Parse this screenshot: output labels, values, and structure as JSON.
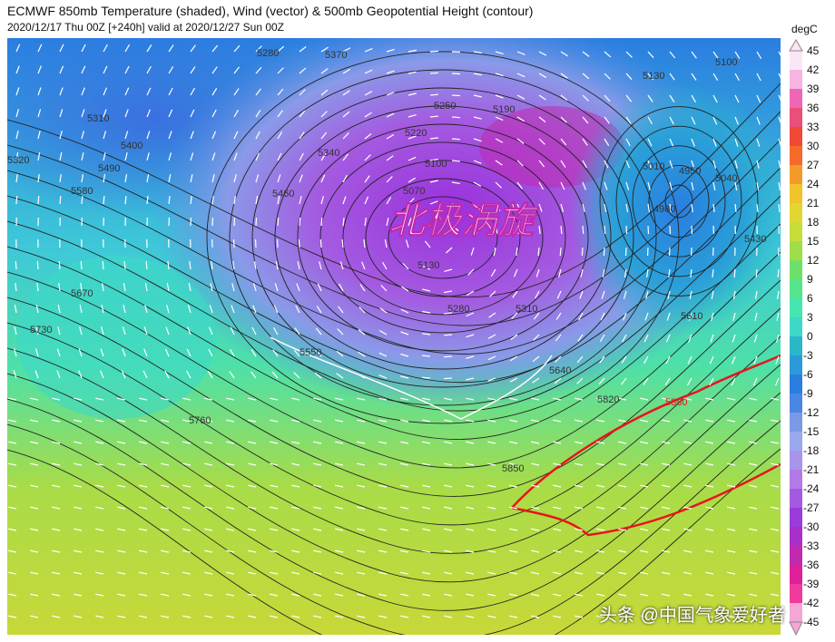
{
  "header": {
    "title": "ECMWF 850mb Temperature (shaded), Wind (vector) & 500mb Geopotential Height (contour)",
    "subtitle": "2020/12/17 Thu 00Z [+240h] valid at 2020/12/27 Sun 00Z"
  },
  "map": {
    "annotation": "北极涡旋",
    "contour_labels": [
      "5280",
      "5370",
      "5130",
      "5100",
      "5310",
      "5400",
      "5320",
      "5490",
      "5580",
      "5460",
      "5340",
      "5250",
      "5190",
      "5220",
      "5100",
      "5070",
      "5130",
      "5280",
      "5310",
      "5010",
      "4950",
      "4980",
      "5040",
      "5430",
      "5610",
      "5550",
      "5640",
      "5820",
      "5880",
      "5670",
      "5730",
      "5760",
      "5850"
    ],
    "highlight_contour": {
      "value": "5880",
      "color": "#e8141c"
    },
    "watermark": "头条 @中国气象爱好者"
  },
  "colorbar": {
    "unit": "degC",
    "ticks": [
      "45",
      "42",
      "39",
      "36",
      "33",
      "30",
      "27",
      "24",
      "21",
      "18",
      "15",
      "12",
      "9",
      "6",
      "3",
      "0",
      "-3",
      "-6",
      "-9",
      "-12",
      "-15",
      "-18",
      "-21",
      "-24",
      "-27",
      "-30",
      "-33",
      "-36",
      "-39",
      "-42",
      "-45"
    ],
    "colors": [
      "#fbe6f5",
      "#f7b4e2",
      "#ee66b6",
      "#e8507a",
      "#f04a36",
      "#f56a28",
      "#f39a2a",
      "#f0c42a",
      "#e0d830",
      "#c8dc3a",
      "#9fde48",
      "#6de06a",
      "#55e48a",
      "#46e6b0",
      "#3ed8c8",
      "#2ab8c8",
      "#2a9ad8",
      "#2a7ee0",
      "#4a86e4",
      "#7a9ae8",
      "#9aa8ec",
      "#a894ea",
      "#b27ae6",
      "#a45ae0",
      "#9a3cdc",
      "#a830c8",
      "#c02ab0",
      "#e0209a",
      "#f03a9c",
      "#f5a6d6"
    ]
  }
}
